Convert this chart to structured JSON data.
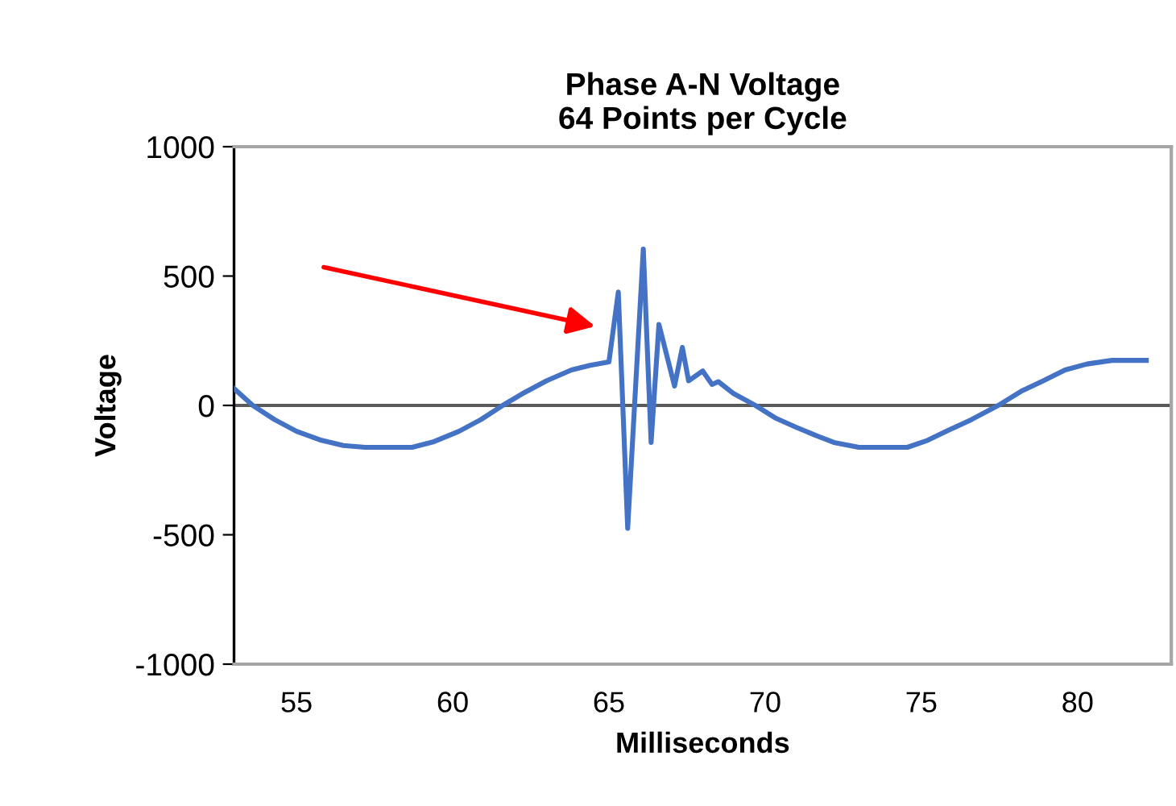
{
  "chart_data": {
    "type": "line",
    "title": "Phase A-N Voltage\n64 Points per Cycle",
    "xlabel": "Milliseconds",
    "ylabel": "Voltage",
    "series": [
      {
        "color": "#4472c4",
        "x": [
          53.0,
          53.6,
          54.3,
          55.0,
          55.8,
          56.5,
          57.2,
          58.0,
          58.7,
          59.4,
          60.2,
          60.9,
          61.6,
          62.3,
          63.0,
          63.8,
          64.4,
          65.0,
          65.3,
          65.6,
          66.1,
          66.35,
          66.6,
          67.1,
          67.35,
          67.55,
          68.0,
          68.3,
          68.5,
          69.0,
          69.66,
          70.35,
          71.0,
          71.6,
          72.2,
          73.0,
          73.8,
          74.55,
          75.2,
          75.8,
          76.6,
          77.46,
          78.2,
          78.9,
          79.6,
          80.3,
          81.1,
          82.2
        ],
        "values": [
          65,
          0,
          -55,
          -100,
          -135,
          -155,
          -162,
          -162,
          -162,
          -140,
          -100,
          -55,
          0,
          50,
          95,
          137,
          155,
          168,
          438,
          -475,
          604,
          -143,
          313,
          75,
          224,
          95,
          133,
          81,
          92,
          45,
          2,
          -50,
          -85,
          -115,
          -143,
          -162,
          -162,
          -162,
          -135,
          -100,
          -55,
          0,
          55,
          95,
          137,
          160,
          174,
          174
        ]
      }
    ],
    "xlim": [
      53,
      83
    ],
    "xticks": [
      55,
      60,
      65,
      70,
      75,
      80
    ],
    "ylim": [
      -1000,
      1000
    ],
    "yticks": [
      -1000,
      -500,
      0,
      500,
      1000
    ],
    "ref_lines": [
      {
        "axis": "y",
        "value": 0,
        "color": "#595959"
      }
    ],
    "grid": false,
    "legend": false,
    "marker": "none",
    "line_style": "solid"
  }
}
